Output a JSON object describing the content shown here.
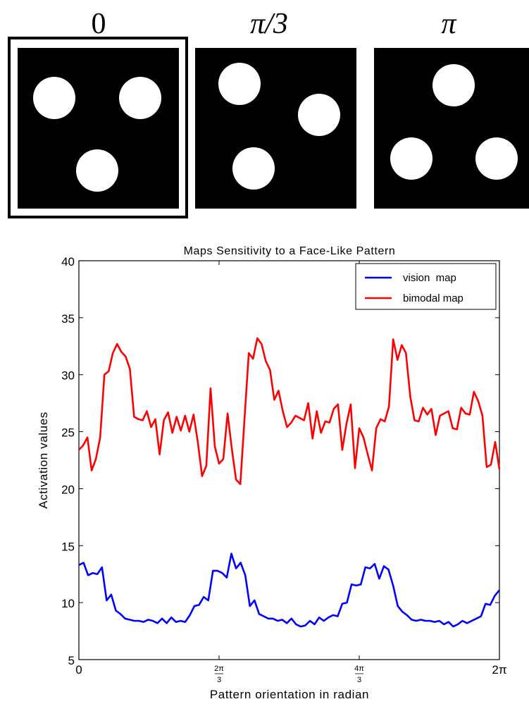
{
  "panels": [
    {
      "label": "0",
      "selected": true
    },
    {
      "label": "π/3",
      "selected": false
    },
    {
      "label": "π",
      "selected": false
    }
  ],
  "colors": {
    "background": "#ffffff",
    "panel_fill": "#000000",
    "dot_fill": "#ffffff",
    "vision": "#0000ff",
    "bimodal": "#ff0000"
  },
  "chart_data": {
    "type": "line",
    "title": "Maps Sensitivity to a Face-Like Pattern",
    "xlabel": "Pattern orientation in radian",
    "ylabel": "Activation values",
    "xlim": [
      0,
      6.2832
    ],
    "ylim": [
      5,
      40
    ],
    "grid": false,
    "legend_position": "top-right",
    "xticks": [
      {
        "value": 0,
        "label": "0"
      },
      {
        "value": 2.0944,
        "num": "2π",
        "den": "3"
      },
      {
        "value": 4.1888,
        "num": "4π",
        "den": "3"
      },
      {
        "value": 6.2832,
        "label": "2π"
      }
    ],
    "yticks": [
      5,
      10,
      15,
      20,
      25,
      30,
      35,
      40
    ],
    "series": [
      {
        "name": "vision  map",
        "color": "#0000ff",
        "values": [
          13.3,
          13.5,
          12.4,
          12.6,
          12.5,
          13.1,
          10.2,
          10.7,
          9.3,
          9.0,
          8.6,
          8.5,
          8.4,
          8.4,
          8.3,
          8.5,
          8.4,
          8.2,
          8.6,
          8.2,
          8.7,
          8.3,
          8.4,
          8.3,
          8.9,
          9.7,
          9.8,
          10.5,
          10.2,
          12.8,
          12.8,
          12.6,
          12.2,
          14.3,
          13.0,
          13.5,
          12.4,
          9.7,
          10.2,
          9.0,
          8.8,
          8.6,
          8.6,
          8.4,
          8.5,
          8.2,
          8.6,
          8.1,
          7.9,
          8.0,
          8.4,
          8.1,
          8.7,
          8.4,
          8.7,
          8.9,
          8.8,
          9.9,
          10.0,
          11.6,
          11.5,
          11.6,
          13.1,
          13.0,
          13.4,
          12.1,
          13.2,
          12.9,
          11.5,
          9.7,
          9.2,
          8.9,
          8.5,
          8.4,
          8.5,
          8.4,
          8.4,
          8.3,
          8.4,
          8.1,
          8.3,
          7.9,
          8.1,
          8.4,
          8.2,
          8.4,
          8.6,
          8.8,
          9.9,
          9.8,
          10.6,
          11.1
        ]
      },
      {
        "name": "bimodal map",
        "color": "#ff0000",
        "values": [
          23.4,
          23.8,
          24.5,
          21.6,
          22.6,
          24.5,
          30.0,
          30.3,
          31.9,
          32.7,
          32.0,
          31.6,
          30.5,
          26.3,
          26.1,
          26.0,
          26.8,
          25.4,
          26.1,
          23.0,
          26.0,
          26.7,
          24.9,
          26.3,
          25.1,
          26.4,
          25.0,
          26.5,
          24.1,
          21.1,
          22.0,
          28.8,
          23.7,
          22.2,
          22.6,
          26.6,
          23.5,
          20.8,
          20.4,
          26.2,
          31.9,
          31.4,
          33.2,
          32.7,
          31.2,
          30.4,
          27.8,
          28.6,
          26.8,
          25.4,
          25.8,
          26.4,
          26.2,
          26.0,
          27.5,
          24.4,
          26.8,
          24.9,
          25.9,
          25.8,
          27.0,
          27.4,
          23.4,
          25.7,
          27.4,
          21.8,
          25.3,
          24.5,
          23.0,
          21.6,
          25.3,
          26.1,
          25.9,
          27.2,
          33.1,
          31.3,
          32.6,
          31.9,
          28.1,
          26.0,
          25.9,
          27.1,
          26.5,
          27.0,
          24.7,
          26.4,
          26.6,
          26.8,
          25.3,
          25.2,
          27.1,
          26.6,
          26.5,
          28.5,
          27.7,
          26.4,
          21.9,
          22.1,
          24.1,
          21.7
        ]
      }
    ]
  }
}
